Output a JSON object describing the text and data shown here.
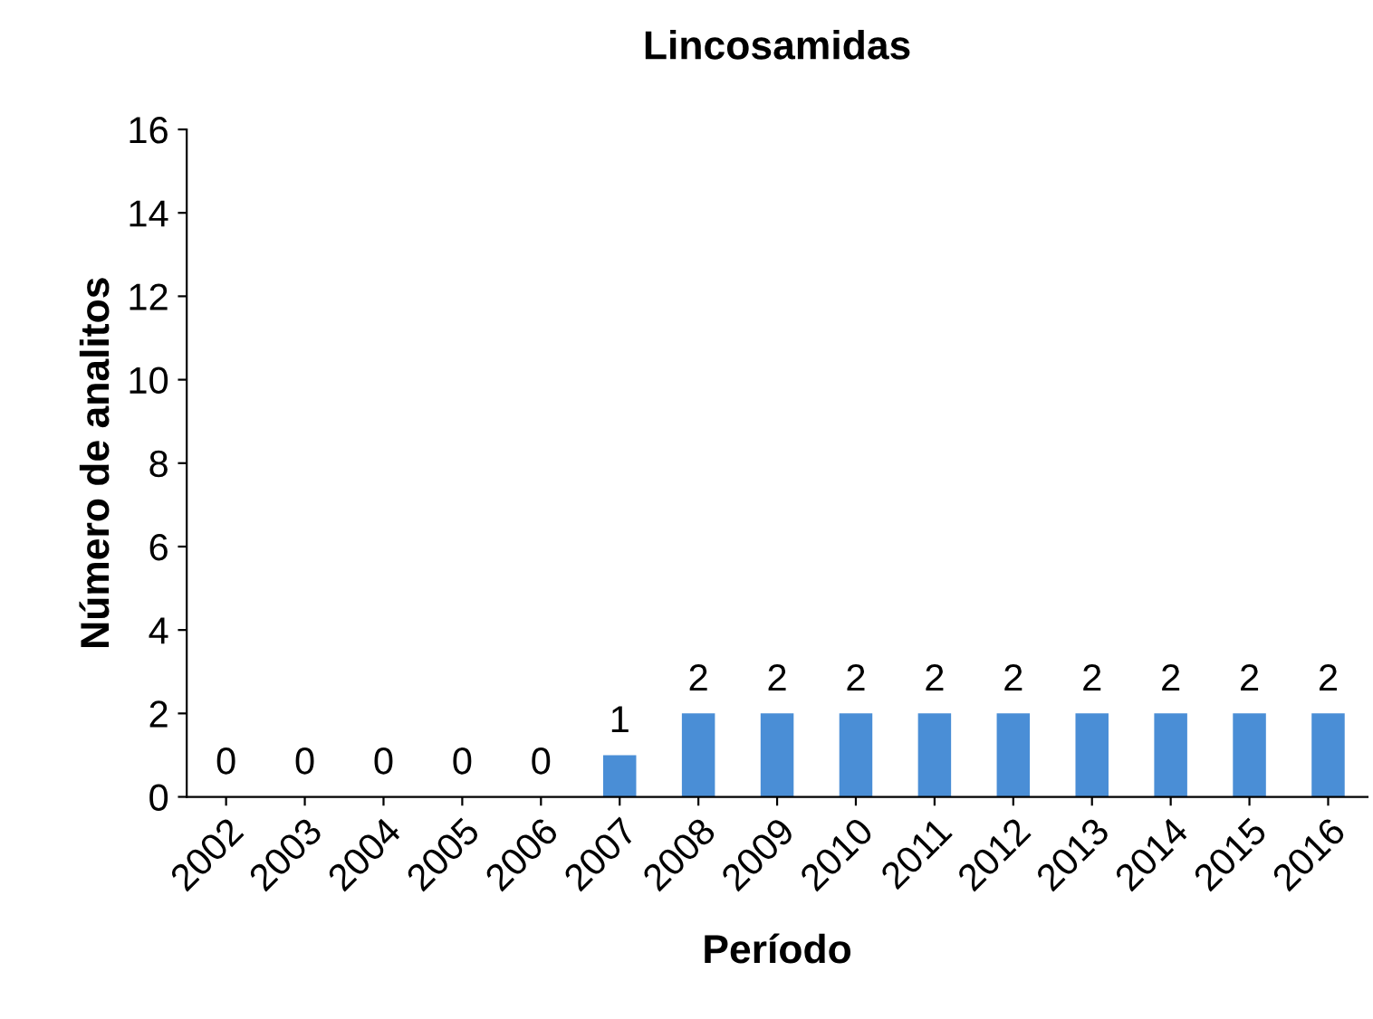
{
  "chart_data": {
    "type": "bar",
    "title": "Lincosamidas",
    "xlabel": "Período",
    "ylabel": "Número de analitos",
    "categories": [
      "2002",
      "2003",
      "2004",
      "2005",
      "2006",
      "2007",
      "2008",
      "2009",
      "2010",
      "2011",
      "2012",
      "2013",
      "2014",
      "2015",
      "2016"
    ],
    "values": [
      0,
      0,
      0,
      0,
      0,
      1,
      2,
      2,
      2,
      2,
      2,
      2,
      2,
      2,
      2
    ],
    "color": "#4a8ed6",
    "ylim": [
      0,
      16
    ],
    "yticks": [
      0,
      2,
      4,
      6,
      8,
      10,
      12,
      14,
      16
    ],
    "grid": false,
    "data_labels": true
  }
}
